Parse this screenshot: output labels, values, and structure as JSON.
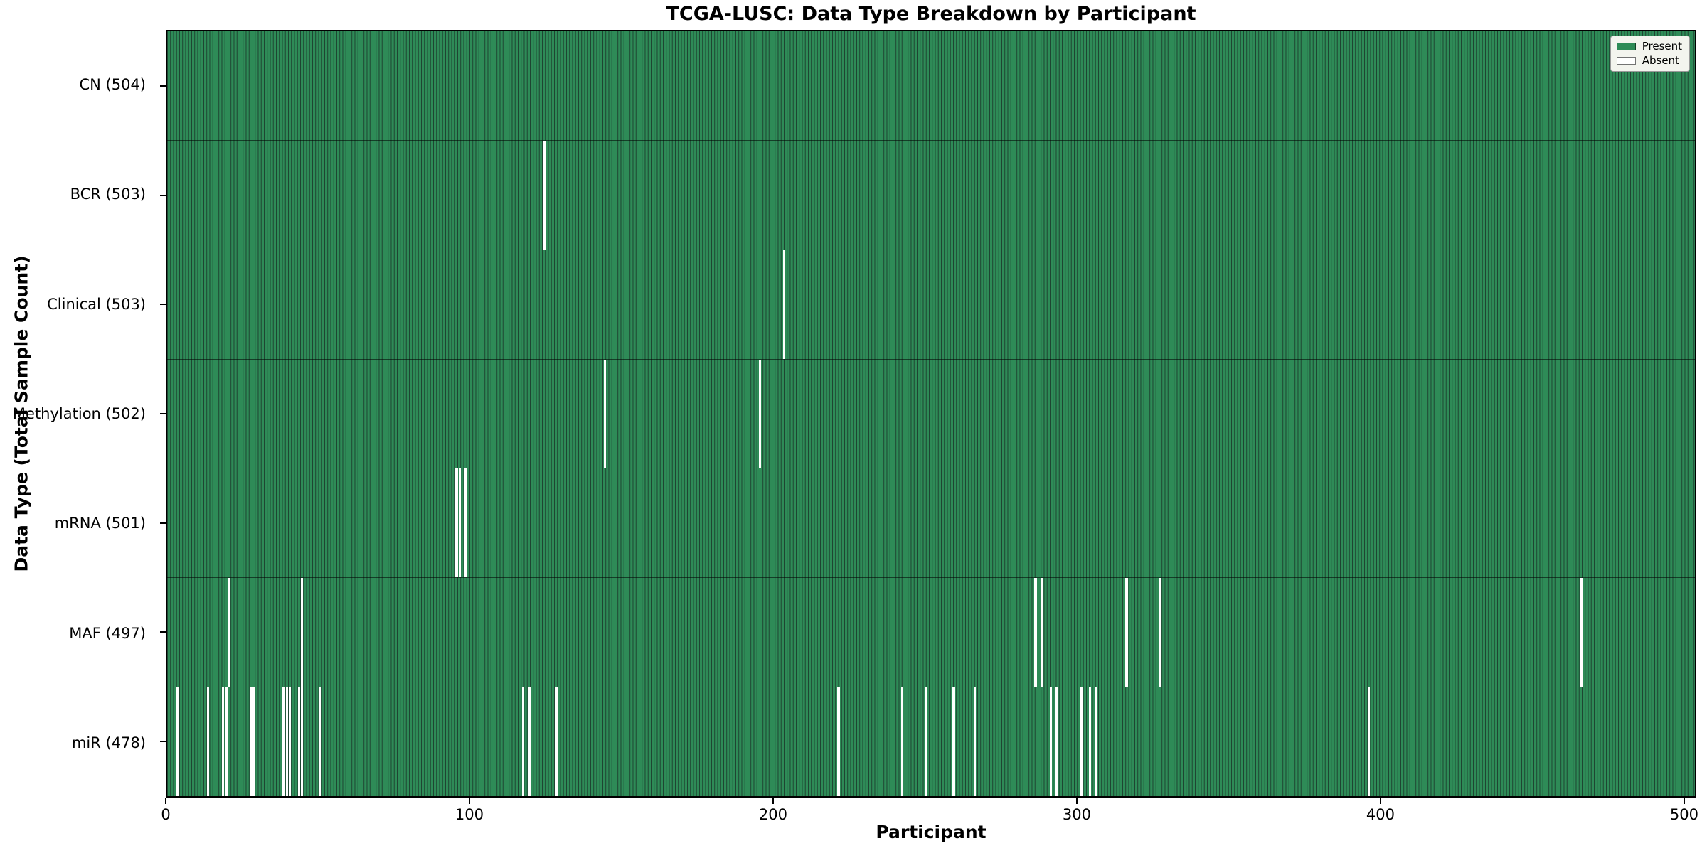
{
  "chart_data": {
    "type": "heatmap",
    "title": "TCGA-LUSC: Data Type Breakdown by Participant",
    "xlabel": "Participant",
    "ylabel": "Data Type (Total Sample Count)",
    "x_range": [
      0,
      504
    ],
    "x_ticks": [
      0,
      100,
      200,
      300,
      400,
      500
    ],
    "total_participants": 504,
    "grid": false,
    "legend": [
      "Present",
      "Absent"
    ],
    "legend_position": "upper right",
    "colors": {
      "present": "#2e8b57",
      "absent": "#ffffff",
      "bar_edge": "#1e4230",
      "legend_bg": "#f3f4ee"
    },
    "rows": [
      {
        "label": "CN (504)",
        "data_type": "CN",
        "present_count": 504,
        "absent_participants": []
      },
      {
        "label": "BCR (503)",
        "data_type": "BCR",
        "present_count": 503,
        "absent_participants": [
          124
        ]
      },
      {
        "label": "Clinical (503)",
        "data_type": "Clinical",
        "present_count": 503,
        "absent_participants": [
          203
        ]
      },
      {
        "label": "Methylation (502)",
        "data_type": "Methylation",
        "present_count": 502,
        "absent_participants": [
          144,
          195
        ]
      },
      {
        "label": "mRNA (501)",
        "data_type": "mRNA",
        "present_count": 501,
        "absent_participants": [
          95,
          96,
          98
        ]
      },
      {
        "label": "MAF (497)",
        "data_type": "MAF",
        "present_count": 497,
        "absent_participants": [
          20,
          44,
          286,
          288,
          316,
          327,
          466
        ]
      },
      {
        "label": "miR (478)",
        "data_type": "miR",
        "present_count": 478,
        "absent_participants": [
          3,
          13,
          18,
          19,
          27,
          28,
          38,
          39,
          40,
          43,
          44,
          50,
          117,
          119,
          128,
          221,
          242,
          250,
          259,
          266,
          291,
          293,
          301,
          304,
          306,
          396
        ]
      }
    ]
  }
}
